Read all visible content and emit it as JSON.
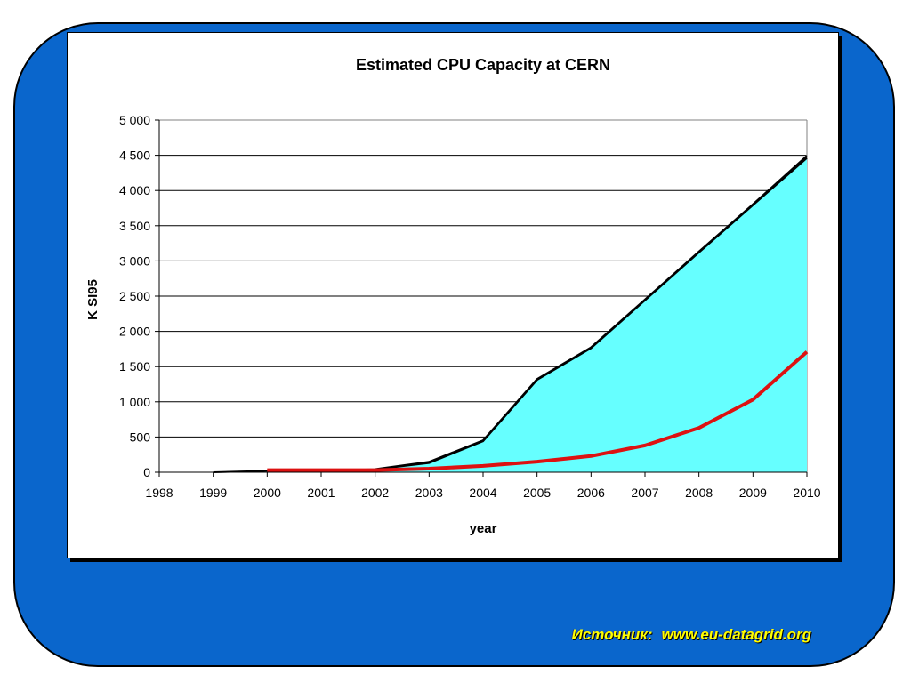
{
  "slide": {
    "source_label": "Источник:",
    "source_url": "www.eu-datagrid.org",
    "colors": {
      "background": "#0a66cc",
      "source_text": "#ffff00"
    }
  },
  "chart_data": {
    "type": "area",
    "title": "Estimated CPU Capacity at CERN",
    "xlabel": "year",
    "ylabel": "K SI95",
    "xlim": [
      1998,
      2010
    ],
    "ylim": [
      0,
      5000
    ],
    "x_ticks": [
      "1998",
      "1999",
      "2000",
      "2001",
      "2002",
      "2003",
      "2004",
      "2005",
      "2006",
      "2007",
      "2008",
      "2009",
      "2010"
    ],
    "y_ticks": [
      "0",
      "500",
      "1 000",
      "1 500",
      "2 000",
      "2 500",
      "3 000",
      "3 500",
      "4 000",
      "4 500",
      "5 000"
    ],
    "y_tick_values": [
      0,
      500,
      1000,
      1500,
      2000,
      2500,
      3000,
      3500,
      4000,
      4500,
      5000
    ],
    "grid": "horizontal",
    "legend": "none",
    "series": [
      {
        "style": "area",
        "fill": "#66ffff",
        "stroke": "#000000",
        "x": [
          1999,
          2000,
          2001,
          2002,
          2003,
          2004,
          2005,
          2006,
          2007,
          2008,
          2009,
          2010
        ],
        "values": [
          0,
          20,
          25,
          40,
          130,
          440,
          1310,
          1760,
          2440,
          3120,
          3790,
          4460
        ]
      },
      {
        "style": "line",
        "stroke": "#000000",
        "x": [
          2002,
          2003,
          2004,
          2005,
          2006,
          2007,
          2008,
          2009,
          2010
        ],
        "values": [
          40,
          145,
          450,
          1320,
          1770,
          2450,
          3130,
          3800,
          4490
        ]
      },
      {
        "style": "line",
        "stroke": "#dd1111",
        "x": [
          2000,
          2001,
          2002,
          2003,
          2004,
          2005,
          2006,
          2007,
          2008,
          2009,
          2010
        ],
        "values": [
          30,
          30,
          30,
          50,
          90,
          150,
          230,
          380,
          630,
          1030,
          1710
        ]
      }
    ]
  }
}
